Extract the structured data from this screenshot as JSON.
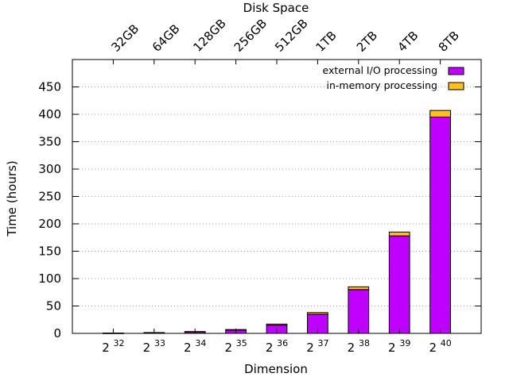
{
  "chart_data": {
    "type": "bar",
    "stacked": true,
    "xlabel": "Dimension",
    "ylabel": "Time (hours)",
    "x2label": "Disk Space",
    "categories": [
      {
        "base": "2",
        "exp": "32"
      },
      {
        "base": "2",
        "exp": "33"
      },
      {
        "base": "2",
        "exp": "34"
      },
      {
        "base": "2",
        "exp": "35"
      },
      {
        "base": "2",
        "exp": "36"
      },
      {
        "base": "2",
        "exp": "37"
      },
      {
        "base": "2",
        "exp": "38"
      },
      {
        "base": "2",
        "exp": "39"
      },
      {
        "base": "2",
        "exp": "40"
      }
    ],
    "top_categories": [
      "32GB",
      "64GB",
      "128GB",
      "256GB",
      "512GB",
      "1TB",
      "2TB",
      "4TB",
      "8TB"
    ],
    "ylim": [
      0,
      500
    ],
    "yticks": [
      0,
      50,
      100,
      150,
      200,
      250,
      300,
      350,
      400,
      450
    ],
    "grid": "horizontal dotted",
    "legend_position": "top-right",
    "series": [
      {
        "name": "external I/O processing",
        "color": "#bf00ff",
        "values": [
          0.4,
          1.2,
          2.8,
          6,
          15,
          35,
          80,
          178,
          395
        ]
      },
      {
        "name": "in-memory processing",
        "color": "#ffc020",
        "values": [
          0.1,
          0.3,
          0.6,
          1,
          2,
          3,
          5,
          7,
          12
        ]
      }
    ]
  }
}
